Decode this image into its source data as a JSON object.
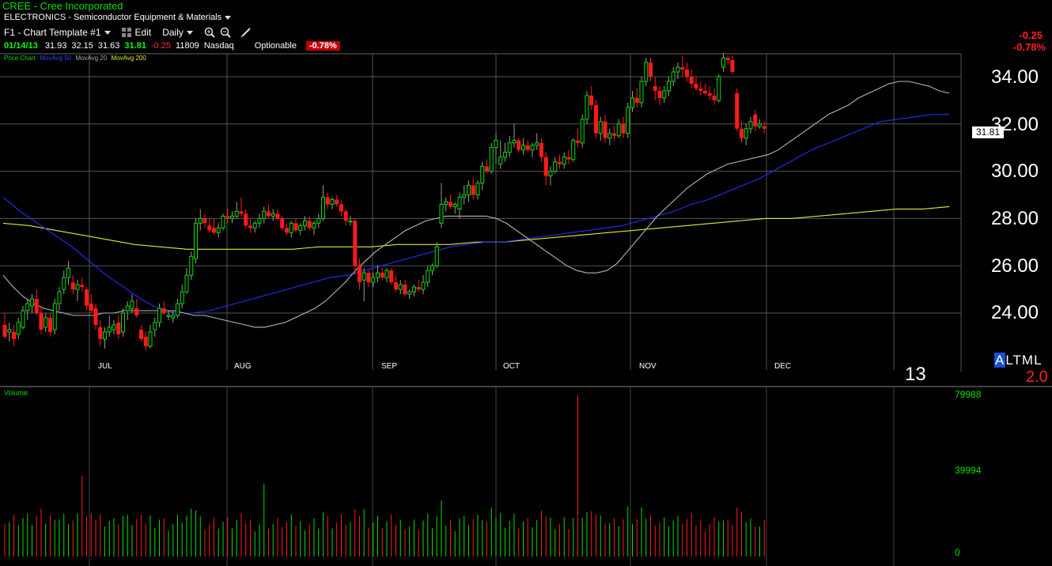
{
  "header": {
    "title": "CREE - Cree Incorporated",
    "industry": "ELECTRONICS - Semiconductor Equipment & Materials"
  },
  "toolbar": {
    "template": "F1 - Chart Template #1",
    "edit": "Edit",
    "period": "Daily",
    "icons": [
      "zoom-in-icon",
      "zoom-out-icon",
      "draw-pen-icon"
    ]
  },
  "quote": {
    "date": "01/14/13",
    "open": "31.93",
    "high": "32.15",
    "low": "31.63",
    "last": "31.81",
    "change": "-0.25",
    "volume": "11809",
    "exchange": "Nasdaq",
    "optionable": "Optionable",
    "pct": "-0.78%"
  },
  "legend": {
    "price": "Price Chart",
    "ma50": "MovAvg 50",
    "ma20": "MovAvg 20",
    "ma200": "MovAvg 200"
  },
  "right_panel": {
    "change": "-0.25",
    "pct": "-0.78%",
    "last_tag": "31.81",
    "year_label": "13",
    "altml": "ALTML",
    "altml_value": "2.0"
  },
  "colors": {
    "up": "#00e000",
    "down": "#ff1a1a",
    "ma50": "#1f2fff",
    "ma20": "#b8b8b8",
    "ma200": "#e8e830",
    "grid": "#555555"
  },
  "volume_panel": {
    "label": "Volume",
    "ticks": [
      "79988",
      "39994",
      "0"
    ]
  },
  "chart_data": {
    "type": "candlestick",
    "y_ticks": [
      "34.00",
      "32.00",
      "30.00",
      "28.00",
      "26.00",
      "24.00"
    ],
    "ylim": [
      22.0,
      35.0
    ],
    "months": [
      "JUL",
      "AUG",
      "SEP",
      "OCT",
      "NOV",
      "DEC"
    ],
    "volume_max": 79988,
    "candles": [
      {
        "o": 23.5,
        "h": 24.0,
        "l": 22.9,
        "c": 23.0
      },
      {
        "o": 23.2,
        "h": 23.6,
        "l": 22.8,
        "c": 23.3
      },
      {
        "o": 23.2,
        "h": 23.5,
        "l": 22.6,
        "c": 22.9
      },
      {
        "o": 23.1,
        "h": 23.8,
        "l": 22.9,
        "c": 23.6
      },
      {
        "o": 23.4,
        "h": 24.3,
        "l": 23.3,
        "c": 24.1
      },
      {
        "o": 24.1,
        "h": 24.6,
        "l": 23.7,
        "c": 24.4
      },
      {
        "o": 24.3,
        "h": 24.8,
        "l": 24.0,
        "c": 24.6
      },
      {
        "o": 24.6,
        "h": 25.0,
        "l": 23.9,
        "c": 24.0
      },
      {
        "o": 24.0,
        "h": 24.3,
        "l": 23.1,
        "c": 23.3
      },
      {
        "o": 23.4,
        "h": 24.0,
        "l": 23.2,
        "c": 23.8
      },
      {
        "o": 23.8,
        "h": 24.0,
        "l": 23.0,
        "c": 23.2
      },
      {
        "o": 23.3,
        "h": 24.6,
        "l": 23.1,
        "c": 24.4
      },
      {
        "o": 24.4,
        "h": 25.1,
        "l": 24.1,
        "c": 24.9
      },
      {
        "o": 25.0,
        "h": 25.8,
        "l": 24.8,
        "c": 25.5
      },
      {
        "o": 25.5,
        "h": 26.2,
        "l": 25.2,
        "c": 25.9
      },
      {
        "o": 25.3,
        "h": 25.6,
        "l": 24.8,
        "c": 25.0
      },
      {
        "o": 25.0,
        "h": 25.4,
        "l": 24.5,
        "c": 25.2
      },
      {
        "o": 25.2,
        "h": 25.5,
        "l": 24.9,
        "c": 25.1
      },
      {
        "o": 25.0,
        "h": 25.1,
        "l": 24.1,
        "c": 24.3
      },
      {
        "o": 24.4,
        "h": 24.8,
        "l": 24.0,
        "c": 24.1
      },
      {
        "o": 24.2,
        "h": 24.4,
        "l": 23.3,
        "c": 23.5
      },
      {
        "o": 23.4,
        "h": 23.7,
        "l": 22.6,
        "c": 22.9
      },
      {
        "o": 22.9,
        "h": 23.4,
        "l": 22.5,
        "c": 23.2
      },
      {
        "o": 23.2,
        "h": 23.9,
        "l": 23.0,
        "c": 23.4
      },
      {
        "o": 23.3,
        "h": 23.7,
        "l": 23.1,
        "c": 23.5
      },
      {
        "o": 23.6,
        "h": 23.9,
        "l": 22.9,
        "c": 23.1
      },
      {
        "o": 23.2,
        "h": 24.2,
        "l": 23.0,
        "c": 24.0
      },
      {
        "o": 24.1,
        "h": 24.5,
        "l": 23.7,
        "c": 24.3
      },
      {
        "o": 24.2,
        "h": 24.8,
        "l": 24.0,
        "c": 24.5
      },
      {
        "o": 24.2,
        "h": 24.6,
        "l": 23.8,
        "c": 23.9
      },
      {
        "o": 23.3,
        "h": 23.5,
        "l": 22.8,
        "c": 22.9
      },
      {
        "o": 23.0,
        "h": 23.2,
        "l": 22.4,
        "c": 22.6
      },
      {
        "o": 22.6,
        "h": 23.5,
        "l": 22.5,
        "c": 23.2
      },
      {
        "o": 23.3,
        "h": 23.8,
        "l": 23.0,
        "c": 23.6
      },
      {
        "o": 23.6,
        "h": 24.4,
        "l": 23.4,
        "c": 24.2
      },
      {
        "o": 24.2,
        "h": 24.5,
        "l": 23.9,
        "c": 24.0
      },
      {
        "o": 23.9,
        "h": 24.1,
        "l": 23.7,
        "c": 23.9
      },
      {
        "o": 23.8,
        "h": 24.1,
        "l": 23.6,
        "c": 23.9
      },
      {
        "o": 23.9,
        "h": 24.6,
        "l": 23.8,
        "c": 24.4
      },
      {
        "o": 24.4,
        "h": 25.2,
        "l": 24.2,
        "c": 24.9
      },
      {
        "o": 24.9,
        "h": 25.9,
        "l": 24.8,
        "c": 25.6
      },
      {
        "o": 25.6,
        "h": 26.6,
        "l": 25.4,
        "c": 26.4
      },
      {
        "o": 26.3,
        "h": 28.0,
        "l": 26.1,
        "c": 27.8
      },
      {
        "o": 27.8,
        "h": 28.4,
        "l": 27.5,
        "c": 28.0
      },
      {
        "o": 28.0,
        "h": 28.2,
        "l": 27.6,
        "c": 27.8
      },
      {
        "o": 27.7,
        "h": 28.0,
        "l": 27.4,
        "c": 27.5
      },
      {
        "o": 27.6,
        "h": 28.0,
        "l": 27.3,
        "c": 27.4
      },
      {
        "o": 27.4,
        "h": 27.8,
        "l": 27.2,
        "c": 27.6
      },
      {
        "o": 27.6,
        "h": 28.2,
        "l": 27.5,
        "c": 28.1
      },
      {
        "o": 28.1,
        "h": 28.4,
        "l": 27.8,
        "c": 28.0
      },
      {
        "o": 28.0,
        "h": 28.3,
        "l": 27.8,
        "c": 28.1
      },
      {
        "o": 28.1,
        "h": 28.7,
        "l": 28.0,
        "c": 28.3
      },
      {
        "o": 28.3,
        "h": 28.9,
        "l": 28.1,
        "c": 28.2
      },
      {
        "o": 28.2,
        "h": 28.4,
        "l": 27.6,
        "c": 27.7
      },
      {
        "o": 27.7,
        "h": 28.0,
        "l": 27.4,
        "c": 27.6
      },
      {
        "o": 27.6,
        "h": 27.9,
        "l": 27.4,
        "c": 27.8
      },
      {
        "o": 27.8,
        "h": 28.2,
        "l": 27.6,
        "c": 28.0
      },
      {
        "o": 28.0,
        "h": 28.5,
        "l": 27.8,
        "c": 28.3
      },
      {
        "o": 28.3,
        "h": 28.6,
        "l": 28.0,
        "c": 28.1
      },
      {
        "o": 28.1,
        "h": 28.4,
        "l": 27.9,
        "c": 28.2
      },
      {
        "o": 28.2,
        "h": 28.4,
        "l": 27.9,
        "c": 28.0
      },
      {
        "o": 28.0,
        "h": 28.1,
        "l": 27.5,
        "c": 27.6
      },
      {
        "o": 27.6,
        "h": 27.8,
        "l": 27.3,
        "c": 27.4
      },
      {
        "o": 27.4,
        "h": 27.9,
        "l": 27.2,
        "c": 27.8
      },
      {
        "o": 27.8,
        "h": 28.0,
        "l": 27.4,
        "c": 27.5
      },
      {
        "o": 27.5,
        "h": 27.8,
        "l": 27.3,
        "c": 27.7
      },
      {
        "o": 27.7,
        "h": 28.1,
        "l": 27.5,
        "c": 27.9
      },
      {
        "o": 27.9,
        "h": 28.1,
        "l": 27.5,
        "c": 27.6
      },
      {
        "o": 27.6,
        "h": 27.9,
        "l": 27.3,
        "c": 27.8
      },
      {
        "o": 27.8,
        "h": 28.2,
        "l": 27.6,
        "c": 28.0
      },
      {
        "o": 28.0,
        "h": 29.4,
        "l": 27.9,
        "c": 28.9
      },
      {
        "o": 28.9,
        "h": 29.1,
        "l": 28.4,
        "c": 28.6
      },
      {
        "o": 28.6,
        "h": 28.9,
        "l": 28.4,
        "c": 28.8
      },
      {
        "o": 28.8,
        "h": 29.0,
        "l": 28.5,
        "c": 28.6
      },
      {
        "o": 28.6,
        "h": 28.8,
        "l": 28.1,
        "c": 28.3
      },
      {
        "o": 28.3,
        "h": 28.4,
        "l": 27.7,
        "c": 27.9
      },
      {
        "o": 27.9,
        "h": 28.1,
        "l": 27.7,
        "c": 27.9
      },
      {
        "o": 27.9,
        "h": 28.0,
        "l": 25.6,
        "c": 26.0
      },
      {
        "o": 26.0,
        "h": 26.3,
        "l": 25.0,
        "c": 25.3
      },
      {
        "o": 25.4,
        "h": 25.9,
        "l": 24.5,
        "c": 25.7
      },
      {
        "o": 25.7,
        "h": 25.8,
        "l": 25.1,
        "c": 25.3
      },
      {
        "o": 25.3,
        "h": 25.7,
        "l": 25.1,
        "c": 25.5
      },
      {
        "o": 25.5,
        "h": 26.0,
        "l": 25.3,
        "c": 25.7
      },
      {
        "o": 25.7,
        "h": 25.9,
        "l": 25.4,
        "c": 25.5
      },
      {
        "o": 25.5,
        "h": 25.9,
        "l": 25.3,
        "c": 25.8
      },
      {
        "o": 25.8,
        "h": 25.9,
        "l": 25.2,
        "c": 25.3
      },
      {
        "o": 25.3,
        "h": 25.6,
        "l": 24.9,
        "c": 25.0
      },
      {
        "o": 25.0,
        "h": 25.4,
        "l": 24.8,
        "c": 25.2
      },
      {
        "o": 25.2,
        "h": 25.4,
        "l": 24.7,
        "c": 24.8
      },
      {
        "o": 24.8,
        "h": 25.0,
        "l": 24.6,
        "c": 24.9
      },
      {
        "o": 24.9,
        "h": 25.2,
        "l": 24.7,
        "c": 25.1
      },
      {
        "o": 25.1,
        "h": 25.4,
        "l": 24.9,
        "c": 25.0
      },
      {
        "o": 25.0,
        "h": 25.6,
        "l": 24.8,
        "c": 25.3
      },
      {
        "o": 25.3,
        "h": 26.0,
        "l": 25.1,
        "c": 25.8
      },
      {
        "o": 25.8,
        "h": 26.1,
        "l": 25.6,
        "c": 26.0
      },
      {
        "o": 26.0,
        "h": 27.0,
        "l": 25.9,
        "c": 26.8
      },
      {
        "o": 27.8,
        "h": 29.5,
        "l": 27.6,
        "c": 28.6
      },
      {
        "o": 28.6,
        "h": 28.9,
        "l": 28.3,
        "c": 28.7
      },
      {
        "o": 28.7,
        "h": 29.0,
        "l": 28.4,
        "c": 28.5
      },
      {
        "o": 28.5,
        "h": 28.7,
        "l": 28.2,
        "c": 28.6
      },
      {
        "o": 28.4,
        "h": 29.1,
        "l": 28.0,
        "c": 28.9
      },
      {
        "o": 28.9,
        "h": 29.4,
        "l": 28.6,
        "c": 29.0
      },
      {
        "o": 29.0,
        "h": 29.6,
        "l": 28.7,
        "c": 29.4
      },
      {
        "o": 29.4,
        "h": 29.7,
        "l": 28.8,
        "c": 29.0
      },
      {
        "o": 29.0,
        "h": 29.6,
        "l": 28.8,
        "c": 29.5
      },
      {
        "o": 29.5,
        "h": 30.4,
        "l": 29.2,
        "c": 30.2
      },
      {
        "o": 30.2,
        "h": 30.5,
        "l": 29.9,
        "c": 30.0
      },
      {
        "o": 30.0,
        "h": 31.2,
        "l": 29.9,
        "c": 31.0
      },
      {
        "o": 31.0,
        "h": 31.6,
        "l": 30.3,
        "c": 31.3
      },
      {
        "o": 30.3,
        "h": 31.3,
        "l": 30.1,
        "c": 30.6
      },
      {
        "o": 30.6,
        "h": 31.2,
        "l": 30.4,
        "c": 30.8
      },
      {
        "o": 30.8,
        "h": 31.5,
        "l": 30.6,
        "c": 31.2
      },
      {
        "o": 31.2,
        "h": 32.0,
        "l": 31.0,
        "c": 31.3
      },
      {
        "o": 31.3,
        "h": 31.4,
        "l": 30.8,
        "c": 30.9
      },
      {
        "o": 30.9,
        "h": 31.4,
        "l": 30.7,
        "c": 31.1
      },
      {
        "o": 31.1,
        "h": 31.3,
        "l": 30.8,
        "c": 30.9
      },
      {
        "o": 30.9,
        "h": 31.2,
        "l": 30.6,
        "c": 31.1
      },
      {
        "o": 31.1,
        "h": 31.6,
        "l": 30.9,
        "c": 31.2
      },
      {
        "o": 31.2,
        "h": 31.4,
        "l": 30.4,
        "c": 30.6
      },
      {
        "o": 30.6,
        "h": 30.8,
        "l": 29.4,
        "c": 29.8
      },
      {
        "o": 29.8,
        "h": 30.2,
        "l": 29.4,
        "c": 30.0
      },
      {
        "o": 30.0,
        "h": 30.6,
        "l": 29.9,
        "c": 30.4
      },
      {
        "o": 30.4,
        "h": 30.7,
        "l": 30.1,
        "c": 30.3
      },
      {
        "o": 30.3,
        "h": 30.8,
        "l": 30.1,
        "c": 30.6
      },
      {
        "o": 30.6,
        "h": 30.9,
        "l": 30.3,
        "c": 30.5
      },
      {
        "o": 30.5,
        "h": 31.4,
        "l": 30.4,
        "c": 31.3
      },
      {
        "o": 31.3,
        "h": 31.8,
        "l": 31.0,
        "c": 31.2
      },
      {
        "o": 31.2,
        "h": 32.4,
        "l": 31.0,
        "c": 32.2
      },
      {
        "o": 32.2,
        "h": 33.4,
        "l": 32.0,
        "c": 33.2
      },
      {
        "o": 33.2,
        "h": 33.6,
        "l": 32.6,
        "c": 32.8
      },
      {
        "o": 32.8,
        "h": 33.0,
        "l": 31.4,
        "c": 31.6
      },
      {
        "o": 31.6,
        "h": 32.3,
        "l": 31.3,
        "c": 32.1
      },
      {
        "o": 32.1,
        "h": 32.4,
        "l": 31.2,
        "c": 31.4
      },
      {
        "o": 31.4,
        "h": 31.8,
        "l": 31.1,
        "c": 31.6
      },
      {
        "o": 31.6,
        "h": 31.9,
        "l": 31.3,
        "c": 31.5
      },
      {
        "o": 31.5,
        "h": 32.2,
        "l": 31.4,
        "c": 32.0
      },
      {
        "o": 32.0,
        "h": 32.3,
        "l": 31.4,
        "c": 31.6
      },
      {
        "o": 31.6,
        "h": 32.9,
        "l": 31.4,
        "c": 32.7
      },
      {
        "o": 32.7,
        "h": 33.4,
        "l": 32.5,
        "c": 33.1
      },
      {
        "o": 33.1,
        "h": 33.5,
        "l": 32.7,
        "c": 32.9
      },
      {
        "o": 32.9,
        "h": 34.0,
        "l": 32.7,
        "c": 33.8
      },
      {
        "o": 33.8,
        "h": 34.8,
        "l": 33.6,
        "c": 34.6
      },
      {
        "o": 34.6,
        "h": 34.8,
        "l": 33.8,
        "c": 34.0
      },
      {
        "o": 33.6,
        "h": 34.0,
        "l": 33.0,
        "c": 33.4
      },
      {
        "o": 33.4,
        "h": 33.6,
        "l": 32.8,
        "c": 33.1
      },
      {
        "o": 33.1,
        "h": 33.6,
        "l": 32.9,
        "c": 33.4
      },
      {
        "o": 33.4,
        "h": 34.0,
        "l": 33.2,
        "c": 33.8
      },
      {
        "o": 33.8,
        "h": 34.4,
        "l": 33.6,
        "c": 34.2
      },
      {
        "o": 34.2,
        "h": 34.6,
        "l": 33.9,
        "c": 34.4
      },
      {
        "o": 34.4,
        "h": 34.9,
        "l": 34.0,
        "c": 34.3
      },
      {
        "o": 34.3,
        "h": 34.6,
        "l": 33.8,
        "c": 34.0
      },
      {
        "o": 34.0,
        "h": 34.3,
        "l": 33.5,
        "c": 33.7
      },
      {
        "o": 33.7,
        "h": 34.0,
        "l": 33.4,
        "c": 33.5
      },
      {
        "o": 33.5,
        "h": 33.8,
        "l": 33.2,
        "c": 33.4
      },
      {
        "o": 33.4,
        "h": 33.7,
        "l": 33.2,
        "c": 33.3
      },
      {
        "o": 33.3,
        "h": 33.6,
        "l": 33.0,
        "c": 33.2
      },
      {
        "o": 33.2,
        "h": 33.5,
        "l": 32.8,
        "c": 33.0
      },
      {
        "o": 33.0,
        "h": 34.1,
        "l": 32.9,
        "c": 34.0
      },
      {
        "o": 34.4,
        "h": 35.0,
        "l": 34.2,
        "c": 34.8
      },
      {
        "o": 34.8,
        "h": 34.9,
        "l": 34.5,
        "c": 34.7
      },
      {
        "o": 34.7,
        "h": 34.9,
        "l": 34.1,
        "c": 34.2
      },
      {
        "o": 33.3,
        "h": 33.5,
        "l": 31.7,
        "c": 31.8
      },
      {
        "o": 31.8,
        "h": 32.1,
        "l": 31.2,
        "c": 31.4
      },
      {
        "o": 31.4,
        "h": 32.0,
        "l": 31.1,
        "c": 31.8
      },
      {
        "o": 31.8,
        "h": 32.3,
        "l": 31.6,
        "c": 32.1
      },
      {
        "o": 32.4,
        "h": 32.6,
        "l": 31.7,
        "c": 31.9
      },
      {
        "o": 31.9,
        "h": 32.2,
        "l": 31.8,
        "c": 32.0
      },
      {
        "o": 31.9,
        "h": 32.1,
        "l": 31.6,
        "c": 31.8
      }
    ],
    "ma20": [
      25.6,
      25.1,
      24.7,
      24.4,
      24.2,
      24.1,
      24.0,
      23.9,
      23.9,
      23.9,
      24.0,
      24.0,
      24.1,
      24.1,
      24.1,
      24.1,
      24.1,
      24.1,
      24.0,
      23.9,
      23.9,
      23.8,
      23.7,
      23.6,
      23.5,
      23.4,
      23.4,
      23.5,
      23.6,
      23.8,
      24.0,
      24.2,
      24.5,
      24.9,
      25.3,
      25.8,
      26.2,
      26.6,
      26.9,
      27.2,
      27.5,
      27.7,
      27.9,
      28.0,
      28.1,
      28.1,
      28.1,
      28.1,
      28.1,
      28.0,
      27.8,
      27.5,
      27.2,
      26.9,
      26.6,
      26.3,
      26.0,
      25.8,
      25.7,
      25.7,
      25.8,
      26.1,
      26.6,
      27.1,
      27.6,
      28.1,
      28.5,
      28.9,
      29.3,
      29.6,
      29.9,
      30.1,
      30.3,
      30.4,
      30.5,
      30.6,
      30.7,
      30.9,
      31.2,
      31.5,
      31.8,
      32.1,
      32.4,
      32.6,
      32.8,
      33.1,
      33.3,
      33.5,
      33.7,
      33.8,
      33.8,
      33.7,
      33.6,
      33.4,
      33.3
    ],
    "ma50": [
      28.9,
      28.3,
      27.8,
      27.3,
      26.8,
      26.2,
      25.6,
      25.1,
      24.6,
      24.2,
      24.0,
      24.0,
      24.1,
      24.3,
      24.5,
      24.7,
      24.9,
      25.1,
      25.3,
      25.5,
      25.6,
      25.8,
      26.0,
      26.2,
      26.4,
      26.6,
      26.8,
      26.9,
      27.0,
      27.0,
      27.1,
      27.2,
      27.3,
      27.4,
      27.5,
      27.6,
      27.7,
      27.9,
      28.1,
      28.3,
      28.6,
      28.8,
      29.1,
      29.4,
      29.7,
      30.1,
      30.5,
      30.9,
      31.2,
      31.5,
      31.8,
      32.1,
      32.2,
      32.3,
      32.4,
      32.4
    ],
    "ma200": [
      27.8,
      27.7,
      27.5,
      27.3,
      27.1,
      26.9,
      26.8,
      26.7,
      26.7,
      26.7,
      26.7,
      26.7,
      26.8,
      26.8,
      26.8,
      26.9,
      26.9,
      26.9,
      27.0,
      27.0,
      27.1,
      27.2,
      27.3,
      27.4,
      27.5,
      27.6,
      27.7,
      27.8,
      27.9,
      28.0,
      28.0,
      28.1,
      28.2,
      28.3,
      28.4,
      28.4,
      28.5
    ]
  }
}
